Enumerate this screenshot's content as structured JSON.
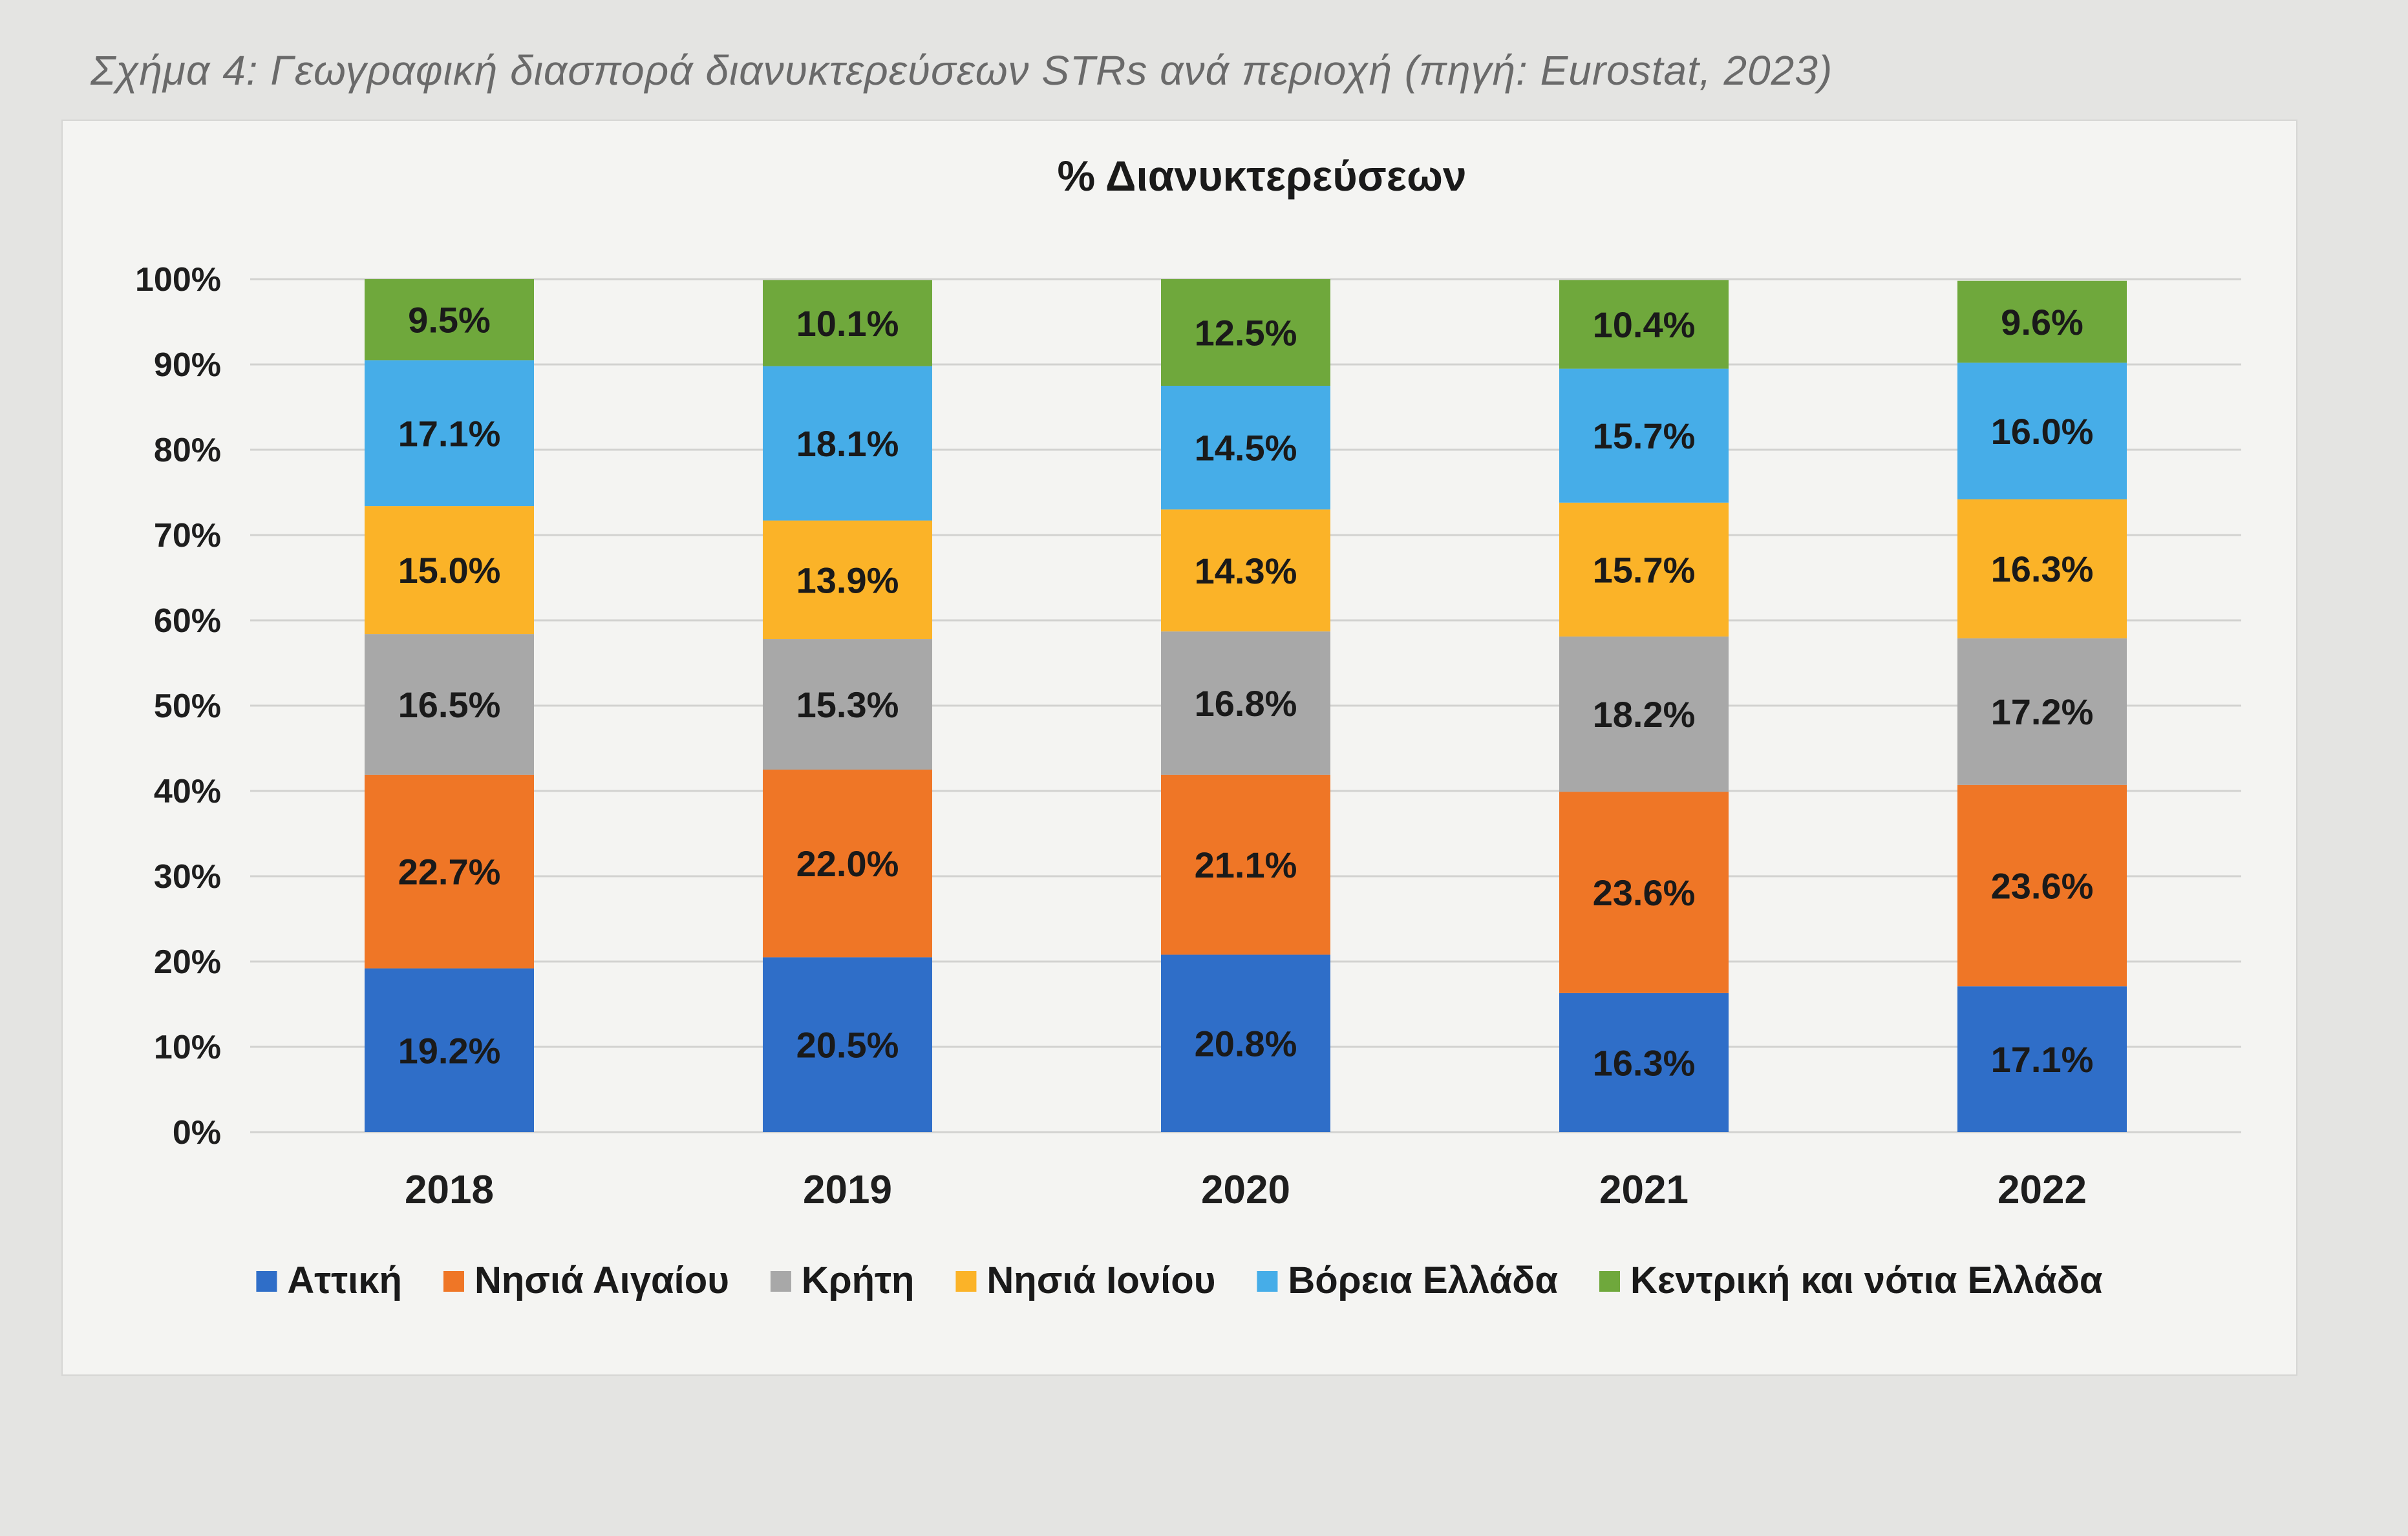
{
  "caption": "Σχήμα 4: Γεωγραφική διασπορά διανυκτερεύσεων STRs ανά περιοχή (πηγή: Eurostat, 2023)",
  "chart_data": {
    "type": "bar",
    "stacked": true,
    "title": "% Διανυκτερεύσεων",
    "xlabel": "",
    "ylabel": "",
    "categories": [
      "2018",
      "2019",
      "2020",
      "2021",
      "2022"
    ],
    "ylim": [
      0,
      100
    ],
    "yticks": [
      "0%",
      "10%",
      "20%",
      "30%",
      "40%",
      "50%",
      "60%",
      "70%",
      "80%",
      "90%",
      "100%"
    ],
    "grid": true,
    "legend_position": "bottom",
    "series": [
      {
        "name": "Αττική",
        "color": "#2f6ec8",
        "values": [
          19.2,
          20.5,
          20.8,
          16.3,
          17.1
        ],
        "labels": [
          "19.2%",
          "20.5%",
          "20.8%",
          "16.3%",
          "17.1%"
        ]
      },
      {
        "name": "Νησιά Αιγαίου",
        "color": "#ef7626",
        "values": [
          22.7,
          22.0,
          21.1,
          23.6,
          23.6
        ],
        "labels": [
          "22.7%",
          "22.0%",
          "21.1%",
          "23.6%",
          "23.6%"
        ]
      },
      {
        "name": "Κρήτη",
        "color": "#a8a8a8",
        "values": [
          16.5,
          15.3,
          16.8,
          18.2,
          17.2
        ],
        "labels": [
          "16.5%",
          "15.3%",
          "16.8%",
          "18.2%",
          "17.2%"
        ]
      },
      {
        "name": "Νησιά Ιονίου",
        "color": "#fbb328",
        "values": [
          15.0,
          13.9,
          14.3,
          15.7,
          16.3
        ],
        "labels": [
          "15.0%",
          "13.9%",
          "14.3%",
          "15.7%",
          "16.3%"
        ]
      },
      {
        "name": "Βόρεια Ελλάδα",
        "color": "#46ade8",
        "values": [
          17.1,
          18.1,
          14.5,
          15.7,
          16.0
        ],
        "labels": [
          "17.1%",
          "18.1%",
          "14.5%",
          "15.7%",
          "16.0%"
        ]
      },
      {
        "name": "Κεντρική και νότια Ελλάδα",
        "color": "#6fa83c",
        "values": [
          9.5,
          10.1,
          12.5,
          10.4,
          9.6
        ],
        "labels": [
          "9.5%",
          "10.1%",
          "12.5%",
          "10.4%",
          "9.6%"
        ]
      }
    ]
  }
}
